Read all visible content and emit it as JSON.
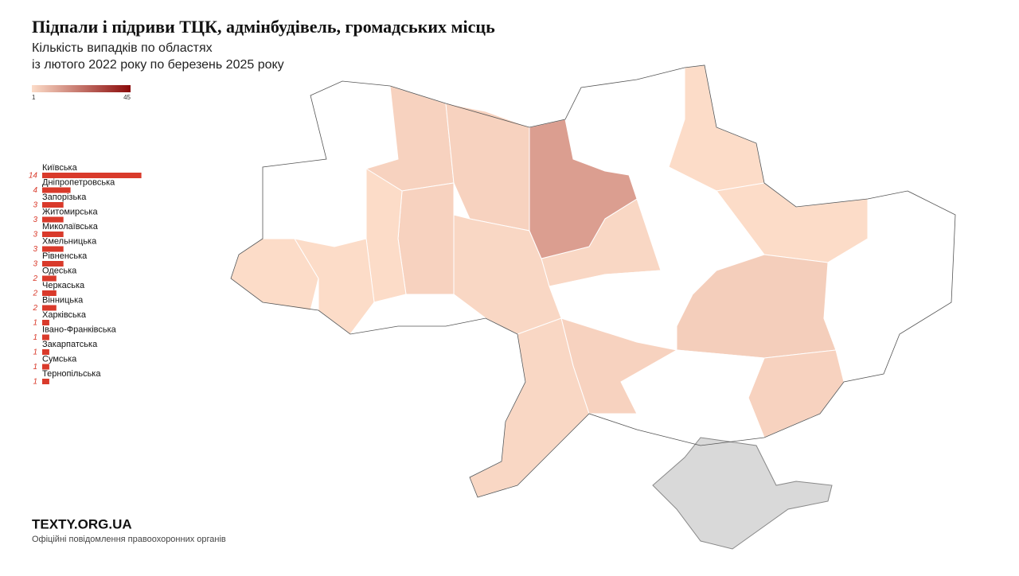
{
  "chart_data": {
    "type": "bar",
    "title": "Підпали і підриви ТЦК, адмінбудівель, громадських місць",
    "subtitle": [
      "Кількість випадків по областях",
      "із лютого 2022 року по березень 2025 року"
    ],
    "legend": {
      "min": 1,
      "max": 45,
      "colors": [
        "#fcdcc8",
        "#8b0a0a"
      ]
    },
    "categories": [
      "Київська",
      "Дніпропетровська",
      "Запорізька",
      "Житомирська",
      "Миколаївська",
      "Хмельницька",
      "Рівненська",
      "Одеська",
      "Черкаська",
      "Вінницька",
      "Харківська",
      "Івано-Франківська",
      "Закарпатська",
      "Сумська",
      "Тернопільська"
    ],
    "values": [
      14,
      4,
      3,
      3,
      3,
      3,
      3,
      2,
      2,
      2,
      1,
      1,
      1,
      1,
      1
    ],
    "color": "#d93a2b"
  },
  "footer": {
    "brand": "TEXTY.ORG.UA",
    "source": "Офіційні повідомлення правоохоронних органів"
  }
}
